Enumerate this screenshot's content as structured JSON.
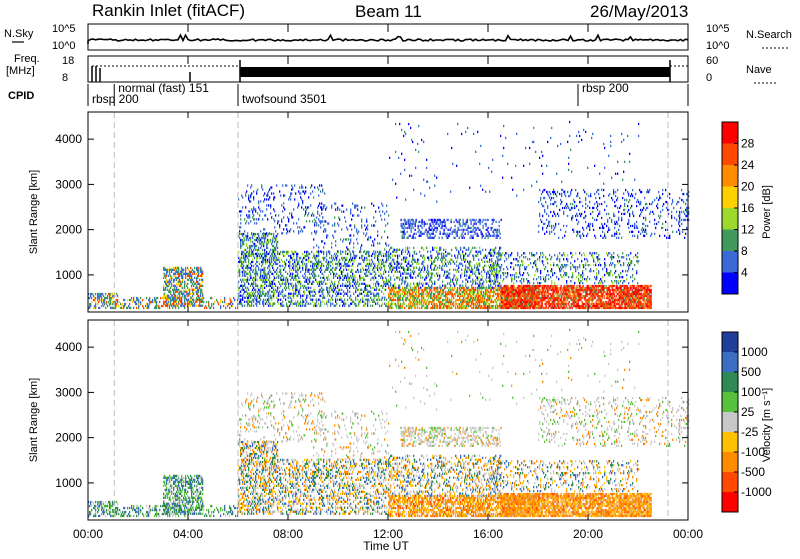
{
  "header": {
    "station": "Rankin Inlet (fitACF)",
    "beam": "Beam 11",
    "date": "26/May/2013"
  },
  "top_panels": {
    "nsky_label": "N.Sky",
    "nsky_ticks": [
      "10^5",
      "10^0"
    ],
    "nsearch_label": "N.Search",
    "nsearch_ticks": [
      "10^5",
      "10^0"
    ],
    "freq_label": "Freq.",
    "freq_unit": "[MHz]",
    "freq_ticks": [
      "18",
      "8"
    ],
    "nave_label": "Nave",
    "nave_ticks": [
      "60",
      "0"
    ],
    "cpid_label": "CPID",
    "cpid_segments": [
      {
        "label": "rbsp 200",
        "start_h": 0.0,
        "end_h": 1.05
      },
      {
        "label": "normal (fast) 151",
        "start_h": 1.05,
        "end_h": 6.0
      },
      {
        "label": "twofsound 3501",
        "start_h": 6.0,
        "end_h": 19.6
      },
      {
        "label": "rbsp 200",
        "start_h": 19.6,
        "end_h": 24.0
      }
    ]
  },
  "chart_data": [
    {
      "type": "heatmap",
      "name": "power",
      "ylabel": "Slant Range [km]",
      "xlabel": "",
      "x_range_hours": [
        0,
        24
      ],
      "ylim": [
        180,
        4600
      ],
      "yticks": [
        1000,
        2000,
        3000,
        4000
      ],
      "colorbar_label": "Power [dB]",
      "colorbar_ticks": [
        "28",
        "24",
        "20",
        "16",
        "12",
        "8",
        "4"
      ],
      "colorbar_colors": [
        "#ff0000",
        "#ff4a00",
        "#ff8c00",
        "#ffd000",
        "#9bd92c",
        "#3f9a5c",
        "#3a6ad8",
        "#0000ff"
      ]
    },
    {
      "type": "heatmap",
      "name": "velocity",
      "ylabel": "Slant Range [km]",
      "xlabel": "Time UT",
      "x_range_hours": [
        0,
        24
      ],
      "xticks": [
        "00:00",
        "04:00",
        "08:00",
        "12:00",
        "16:00",
        "20:00",
        "00:00"
      ],
      "ylim": [
        180,
        4600
      ],
      "yticks": [
        1000,
        2000,
        3000,
        4000
      ],
      "colorbar_label": "Velocity [m s⁻¹]",
      "colorbar_ticks": [
        "1000",
        "500",
        "100",
        "25",
        "-25",
        "-100",
        "-500",
        "-1000"
      ],
      "colorbar_colors": [
        "#1f3f9a",
        "#3b6fc4",
        "#2f8a56",
        "#56c23c",
        "#c8c8c8",
        "#ffc000",
        "#ff8c00",
        "#ff4a00",
        "#ff0000"
      ]
    }
  ]
}
